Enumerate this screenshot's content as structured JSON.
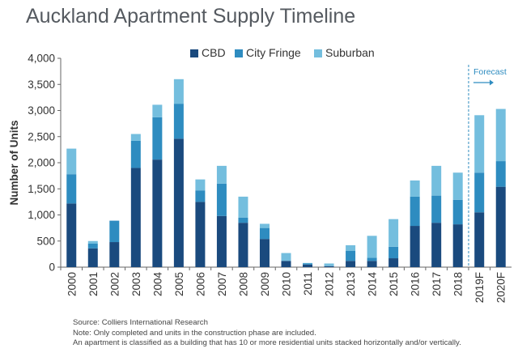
{
  "chart_data": {
    "type": "bar",
    "stacked": true,
    "title": "Auckland Apartment Supply Timeline",
    "xlabel": "",
    "ylabel": "Number of Units",
    "ylim": [
      0,
      4000
    ],
    "yticks": [
      0,
      500,
      1000,
      1500,
      2000,
      2500,
      3000,
      3500,
      4000
    ],
    "ytick_labels": [
      "0",
      "500",
      "1,000",
      "1,500",
      "2,000",
      "2,500",
      "3,000",
      "3,500",
      "4,000"
    ],
    "grid": false,
    "legend_position": "top-center",
    "categories": [
      "2000",
      "2001",
      "2002",
      "2003",
      "2004",
      "2005",
      "2006",
      "2007",
      "2008",
      "2009",
      "2010",
      "2011",
      "2012",
      "2013",
      "2014",
      "2015",
      "2016",
      "2017",
      "2018",
      "2019F",
      "2020F"
    ],
    "series": [
      {
        "name": "CBD",
        "color": "#1a4a7e",
        "values": [
          1220,
          360,
          480,
          1900,
          2060,
          2460,
          1250,
          980,
          850,
          540,
          120,
          50,
          20,
          120,
          120,
          170,
          790,
          850,
          820,
          1050,
          1540
        ]
      },
      {
        "name": "City Fringe",
        "color": "#2e8cc0",
        "values": [
          560,
          90,
          410,
          520,
          810,
          670,
          220,
          620,
          100,
          210,
          0,
          20,
          0,
          190,
          60,
          220,
          560,
          520,
          470,
          760,
          490
        ]
      },
      {
        "name": "Suburban",
        "color": "#74bede",
        "values": [
          490,
          50,
          0,
          130,
          240,
          470,
          210,
          340,
          400,
          80,
          150,
          10,
          50,
          110,
          420,
          530,
          310,
          570,
          520,
          1100,
          1000
        ]
      }
    ],
    "annotation": {
      "label": "Forecast",
      "after_category": "2018"
    }
  },
  "notes": {
    "source": "Source: Colliers International Research",
    "note1": "Note: Only completed and units in the construction phase are included.",
    "note2": "An apartment is classified as a building that has 10 or more residential units stacked horizontally and/or vertically."
  }
}
